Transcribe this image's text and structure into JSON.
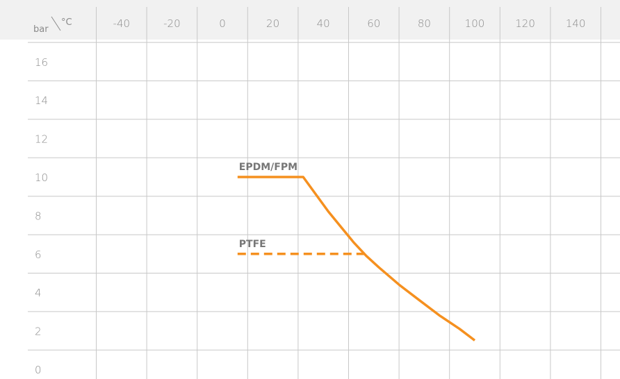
{
  "chart_data": {
    "type": "line",
    "corner_label": {
      "y_unit": "bar",
      "x_unit": "°C"
    },
    "x_ticks": [
      "-40",
      "-20",
      "0",
      "20",
      "40",
      "60",
      "80",
      "100",
      "120",
      "140"
    ],
    "y_ticks": [
      "16",
      "14",
      "12",
      "10",
      "8",
      "6",
      "4",
      "2",
      "0"
    ],
    "xlim": [
      -55,
      155
    ],
    "ylim": [
      0,
      17.5
    ],
    "grid": true,
    "series": [
      {
        "name": "EPDM/FPM",
        "style": "solid",
        "color": "#f5901f",
        "x": [
          6,
          32,
          37,
          42,
          47,
          52,
          57,
          62,
          70,
          78,
          86,
          94,
          100
        ],
        "y": [
          10,
          10,
          9.1,
          8.2,
          7.4,
          6.6,
          5.9,
          5.3,
          4.4,
          3.6,
          2.8,
          2.1,
          1.5
        ]
      },
      {
        "name": "PTFE",
        "style": "dashed",
        "color": "#f5901f",
        "x": [
          6,
          57
        ],
        "y": [
          6,
          6
        ]
      }
    ]
  }
}
